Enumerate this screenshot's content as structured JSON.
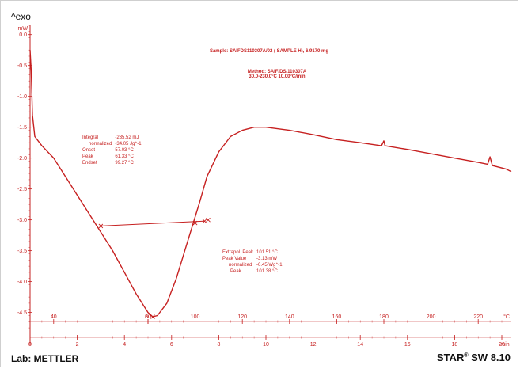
{
  "header": {
    "exo_label": "^exo"
  },
  "footer": {
    "lab": "Lab: METTLER",
    "software": "STAR",
    "software_mark": "®",
    "software_version": "SW 8.10"
  },
  "sample": {
    "line1": "Sample: SAIFDS110307A/02 ( SAMPLE H), 6.9170 mg",
    "line2": "Method: SAIF/DS/110307A",
    "line3": "30.0-230.0°C 10.00°C/min"
  },
  "annotation_endo": [
    {
      "label": "Integral",
      "value": "-235.52 mJ"
    },
    {
      "label": "normalized",
      "value": "-34.05 Jg^-1"
    },
    {
      "label": "Onset",
      "value": "57.03 °C"
    },
    {
      "label": "Peak",
      "value": "61.33 °C"
    },
    {
      "label": "Endset",
      "value": "99.27 °C"
    }
  ],
  "annotation_peak": [
    {
      "label": "Extrapol. Peak",
      "value": "101.51 °C"
    },
    {
      "label": "Peak Value",
      "value": "-3.13 mW"
    },
    {
      "label": "normalized",
      "value": "-0.45 Wg^-1"
    },
    {
      "label": "Peak",
      "value": "101.38 °C"
    }
  ],
  "colors": {
    "curve": "#c62020",
    "axis": "#c62020",
    "text": "#111111"
  },
  "chart_data": {
    "type": "line",
    "y_unit_label": "mW",
    "ylim": [
      -4.8,
      0.15
    ],
    "y_ticks": [
      0.0,
      -0.5,
      -1.0,
      -1.5,
      -2.0,
      -2.5,
      -3.0,
      -3.5,
      -4.0,
      -4.5
    ],
    "y_tick_labels": [
      "0.0",
      "-0.5",
      "-1.0",
      "-1.5",
      "-2.0",
      "-2.5",
      "-3.0",
      "-3.5",
      "-4.0",
      "-4.5"
    ],
    "time_unit_label": "min",
    "time_lim": [
      0,
      20
    ],
    "time_ticks": [
      0,
      2,
      4,
      6,
      8,
      10,
      12,
      14,
      16,
      18,
      20
    ],
    "temp_unit_label": "°C",
    "temp_ticks": [
      40,
      60,
      80,
      100,
      120,
      140,
      160,
      180,
      200,
      220
    ],
    "temp_tick_time": [
      1.0,
      5.0,
      5.0,
      7.0,
      9.0,
      11.0,
      13.0,
      15.0,
      17.0,
      19.0
    ],
    "series": [
      {
        "points": [
          [
            0.0,
            -0.25
          ],
          [
            0.05,
            -0.6
          ],
          [
            0.1,
            -1.3
          ],
          [
            0.2,
            -1.65
          ],
          [
            0.5,
            -1.8
          ],
          [
            1.0,
            -2.0
          ],
          [
            1.5,
            -2.3
          ],
          [
            2.0,
            -2.6
          ],
          [
            2.5,
            -2.9
          ],
          [
            3.0,
            -3.2
          ],
          [
            3.5,
            -3.5
          ],
          [
            4.0,
            -3.85
          ],
          [
            4.5,
            -4.2
          ],
          [
            5.0,
            -4.5
          ],
          [
            5.2,
            -4.57
          ],
          [
            5.4,
            -4.55
          ],
          [
            5.8,
            -4.35
          ],
          [
            6.2,
            -3.95
          ],
          [
            6.6,
            -3.45
          ],
          [
            7.0,
            -2.95
          ],
          [
            7.2,
            -2.7
          ],
          [
            7.5,
            -2.3
          ],
          [
            8.0,
            -1.9
          ],
          [
            8.5,
            -1.65
          ],
          [
            9.0,
            -1.55
          ],
          [
            9.5,
            -1.5
          ],
          [
            10.0,
            -1.5
          ],
          [
            11.0,
            -1.55
          ],
          [
            12.0,
            -1.62
          ],
          [
            13.0,
            -1.7
          ],
          [
            14.0,
            -1.75
          ],
          [
            14.9,
            -1.8
          ],
          [
            15.0,
            -1.72
          ],
          [
            15.05,
            -1.8
          ],
          [
            16.0,
            -1.86
          ],
          [
            17.0,
            -1.93
          ],
          [
            18.0,
            -2.0
          ],
          [
            19.0,
            -2.07
          ],
          [
            19.4,
            -2.1
          ],
          [
            19.5,
            -1.98
          ],
          [
            19.6,
            -2.12
          ],
          [
            20.2,
            -2.18
          ],
          [
            20.7,
            -2.22
          ]
        ]
      }
    ],
    "baseline": [
      [
        3.0,
        -3.1
      ],
      [
        7.4,
        -3.02
      ]
    ],
    "markers": [
      [
        3.0,
        -3.1
      ],
      [
        7.4,
        -3.02
      ],
      [
        7.0,
        -3.05
      ],
      [
        7.55,
        -3.0
      ],
      [
        5.2,
        -4.57
      ]
    ],
    "grid": false
  }
}
